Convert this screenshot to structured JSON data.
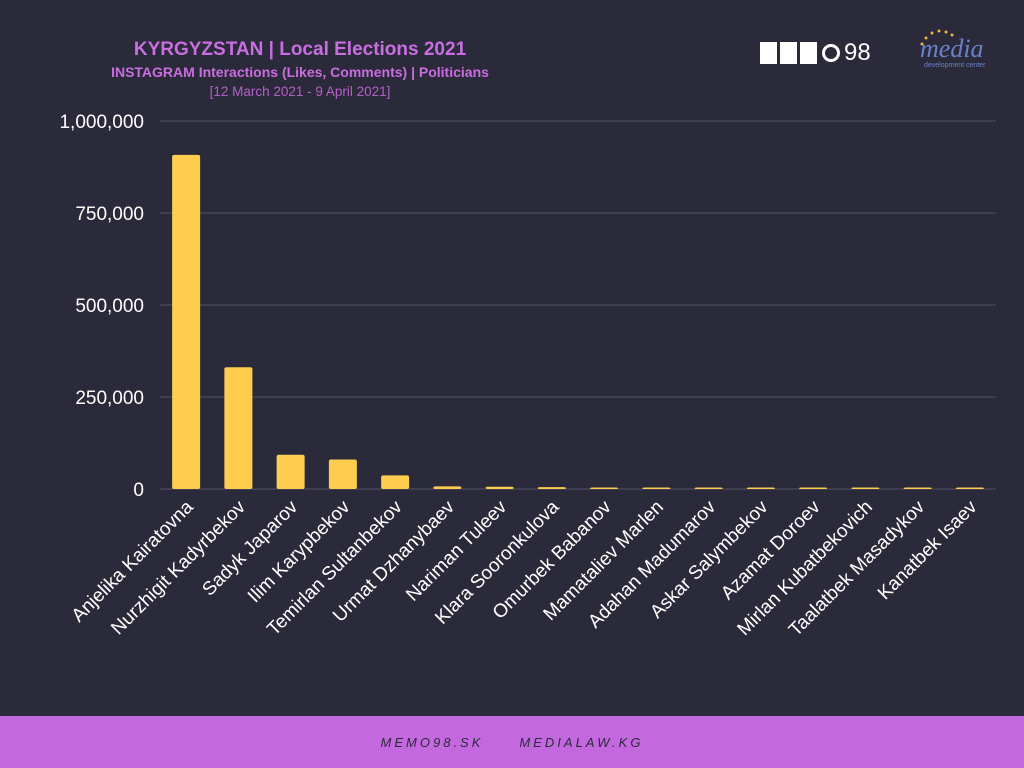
{
  "header": {
    "title": "KYRGYZSTAN | Local Elections 2021",
    "subtitle": "INSTAGRAM Interactions (Likes, Comments) | Politicians",
    "date_range": "[12 March 2021 - 9 April 2021]"
  },
  "logos": {
    "memo98_number": "98",
    "media_word": "media",
    "media_tagline": "development center"
  },
  "footer": {
    "link1": "MEMO98.SK",
    "link2": "MEDIALAW.KG"
  },
  "colors": {
    "background": "#2b2a3a",
    "bar": "#ffcd4d",
    "accent": "#c86ee0",
    "grid": "#55546a",
    "text": "#ffffff"
  },
  "chart_data": {
    "type": "bar",
    "title": "KYRGYZSTAN | Local Elections 2021",
    "categories": [
      "Anjelika Kairatovna",
      "Nurzhigit Kadyrbekov",
      "Sadyk Japarov",
      "Ilim Karypbekov",
      "Temirlan Sultanbekov",
      "Urmat Dzhanybaev",
      "Nariman Tuleev",
      "Klara Sooronkulova",
      "Omurbek Babanov",
      "Mamataliev Marlen",
      "Adahan Madumarov",
      "Askar Salymbekov",
      "Azamat Doroev",
      "Mirlan Kubatbekovich",
      "Taalatbek Masadykov",
      "Kanatbek Isaev"
    ],
    "values": [
      908000,
      331000,
      93000,
      80000,
      37000,
      7000,
      6000,
      5000,
      4000,
      2500,
      2000,
      1500,
      1200,
      1000,
      800,
      600
    ],
    "ylim": [
      0,
      1000000
    ],
    "yticks": [
      0,
      250000,
      500000,
      750000,
      1000000
    ],
    "ytick_labels": [
      "0",
      "250,000",
      "500,000",
      "750,000",
      "1,000,000"
    ],
    "xlabel": "",
    "ylabel": "",
    "grid": true,
    "legend": "none"
  }
}
